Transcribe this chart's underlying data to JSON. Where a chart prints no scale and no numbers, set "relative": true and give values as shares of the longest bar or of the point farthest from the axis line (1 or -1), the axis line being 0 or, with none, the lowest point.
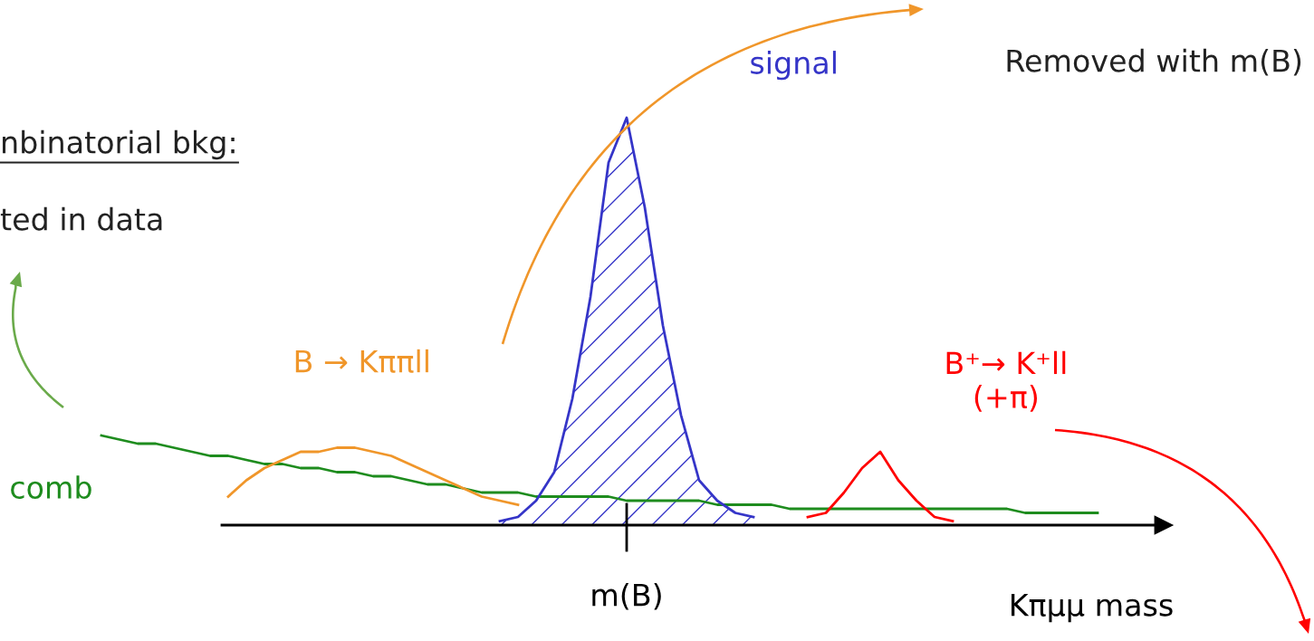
{
  "chart_data": {
    "type": "line",
    "relative": true,
    "xlabel": "Kπμμ mass",
    "categories": [
      null,
      null,
      null,
      null,
      null,
      null,
      null,
      null,
      null,
      null,
      null,
      null,
      null,
      null,
      null,
      null,
      null,
      null,
      null,
      null,
      null,
      null,
      null,
      null,
      null,
      null,
      null,
      null,
      null,
      null,
      null,
      null,
      null,
      null,
      null,
      null,
      null,
      null,
      null,
      null,
      null,
      null,
      null,
      null,
      null,
      null,
      null,
      null,
      null,
      null,
      null,
      null,
      null,
      null,
      null,
      null,
      null,
      null,
      null
    ],
    "series": [
      {
        "name": "comb",
        "color": "#1e8c1e",
        "values": [
          0.22,
          0.21,
          0.2,
          0.2,
          0.19,
          0.18,
          0.17,
          0.17,
          0.16,
          0.15,
          0.15,
          0.14,
          0.14,
          0.13,
          0.13,
          0.12,
          0.12,
          0.11,
          0.1,
          0.1,
          0.09,
          0.08,
          0.08,
          0.08,
          0.07,
          0.07,
          0.07,
          0.07,
          0.07,
          0.06,
          0.06,
          0.06,
          0.06,
          0.06,
          0.05,
          0.05,
          0.05,
          0.05,
          0.04,
          0.04,
          0.04,
          0.04,
          0.04,
          0.04,
          0.04,
          0.04,
          0.04,
          0.04,
          0.04,
          0.04,
          0.04,
          0.03,
          0.03,
          0.03,
          0.03,
          0.03,
          null,
          null,
          null
        ]
      },
      {
        "name": "B → Kππll",
        "color": "#f0962a",
        "values": [
          null,
          null,
          null,
          null,
          null,
          null,
          null,
          0.07,
          0.11,
          0.14,
          0.16,
          0.18,
          0.18,
          0.19,
          0.19,
          0.18,
          0.17,
          0.15,
          0.13,
          0.11,
          0.09,
          0.07,
          0.06,
          0.05,
          null,
          null,
          null,
          null,
          null,
          null,
          null,
          null,
          null,
          null,
          null,
          null,
          null,
          null,
          null,
          null,
          null,
          null,
          null,
          null,
          null,
          null,
          null,
          null,
          null,
          null,
          null,
          null,
          null,
          null,
          null,
          null,
          null,
          null,
          null
        ]
      },
      {
        "name": "signal",
        "type": "area",
        "color": "#3535c8",
        "values": [
          null,
          null,
          null,
          null,
          null,
          null,
          null,
          null,
          null,
          null,
          null,
          null,
          null,
          null,
          null,
          null,
          null,
          null,
          null,
          null,
          null,
          null,
          0.01,
          0.02,
          0.06,
          0.13,
          0.31,
          0.56,
          0.89,
          1,
          0.78,
          0.49,
          0.27,
          0.11,
          0.06,
          0.03,
          0.02,
          null,
          null,
          null,
          null,
          null,
          null,
          null,
          null,
          null,
          null,
          null,
          null,
          null,
          null,
          null,
          null,
          null,
          null,
          null,
          null,
          null,
          null
        ]
      },
      {
        "name": "B⁺→ K⁺ll\n(+π)",
        "color": "#ff0000",
        "values": [
          null,
          null,
          null,
          null,
          null,
          null,
          null,
          null,
          null,
          null,
          null,
          null,
          null,
          null,
          null,
          null,
          null,
          null,
          null,
          null,
          null,
          null,
          null,
          null,
          null,
          null,
          null,
          null,
          null,
          null,
          null,
          null,
          null,
          null,
          null,
          null,
          null,
          null,
          null,
          0.02,
          0.03,
          0.08,
          0.14,
          0.18,
          0.11,
          0.06,
          0.02,
          0.01,
          null,
          null,
          null,
          null,
          null,
          null,
          null,
          null,
          null,
          null,
          null
        ]
      }
    ],
    "annotations": [
      "Removed with m(B)",
      "nbinatorial bkg:",
      "ted in data",
      "m(B)"
    ]
  }
}
